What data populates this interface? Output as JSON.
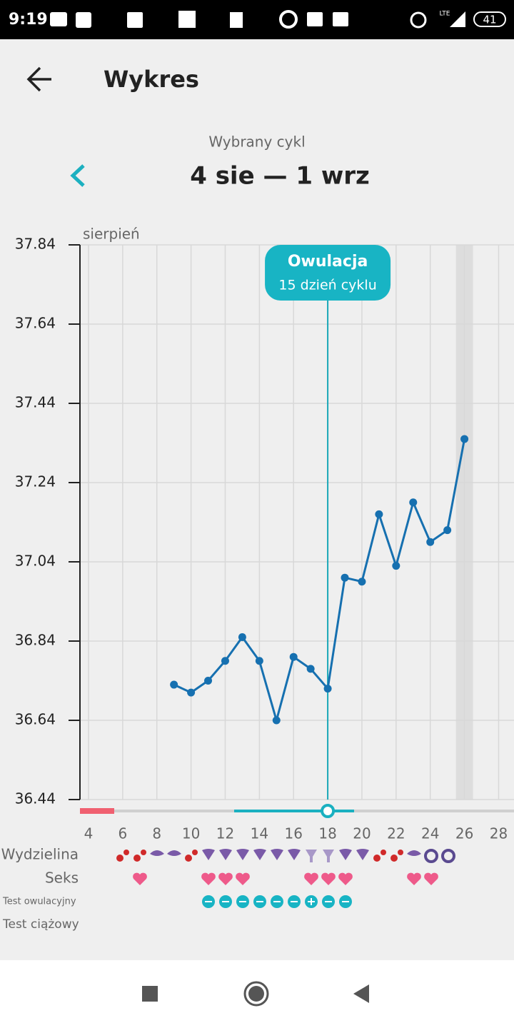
{
  "status_bar": {
    "time": "9:19",
    "network": "LTE",
    "battery": "41"
  },
  "header": {
    "title": "Wykres"
  },
  "cycle": {
    "label": "Wybrany cykl",
    "range": "4 sie — 1 wrz"
  },
  "chart_data": {
    "type": "line",
    "x_label": "sierpień",
    "x": [
      9,
      10,
      11,
      12,
      13,
      14,
      15,
      16,
      17,
      18,
      19,
      20,
      21,
      22,
      23,
      24,
      25,
      26
    ],
    "series": [
      {
        "color": "#1670b0",
        "values": [
          36.73,
          36.71,
          36.74,
          36.79,
          36.85,
          36.79,
          36.64,
          36.8,
          36.77,
          36.72,
          37.0,
          36.99,
          37.16,
          37.03,
          37.19,
          37.09,
          37.12,
          37.35
        ]
      }
    ],
    "xlim": [
      3.5,
      28.9
    ],
    "ylim": [
      36.44,
      37.84
    ],
    "xticks": [
      4,
      6,
      8,
      10,
      12,
      14,
      16,
      18,
      20,
      22,
      24,
      26,
      28
    ],
    "yticks": [
      36.44,
      36.64,
      36.84,
      37.04,
      37.24,
      37.44,
      37.64,
      37.84
    ],
    "grid": true,
    "highlight_x": 26,
    "annotation": {
      "x": 18,
      "title": "Owulacja",
      "text": "15 dzień cyklu"
    }
  },
  "rows": [
    "Wydzielina",
    "Seks",
    "Test owulacyjny",
    "Test ciążowy"
  ]
}
